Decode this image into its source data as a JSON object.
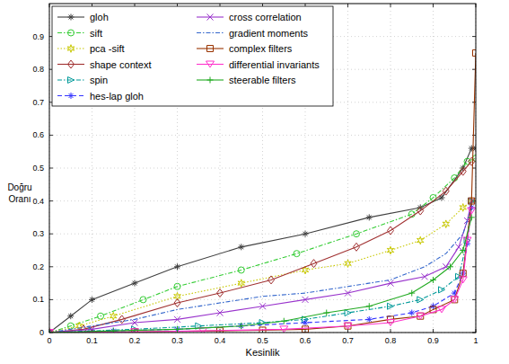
{
  "chart_data": {
    "type": "line",
    "x_label": "Kesinlik",
    "y_label": "Doğru Oranı",
    "xlim": [
      0,
      1
    ],
    "ylim": [
      0,
      1
    ],
    "xticks": [
      0,
      0.1,
      0.2,
      0.3,
      0.4,
      0.5,
      0.6,
      0.7,
      0.8,
      0.9,
      1
    ],
    "yticks": [
      0,
      0.1,
      0.2,
      0.3,
      0.4,
      0.5,
      0.6,
      0.7,
      0.8,
      0.9
    ],
    "grid": true,
    "legend": "upper-left",
    "series": [
      {
        "name": "gloh",
        "color": "#404040",
        "marker": "asterisk",
        "line_style": "solid",
        "x": [
          0,
          0.05,
          0.1,
          0.2,
          0.3,
          0.45,
          0.6,
          0.75,
          0.87,
          0.92,
          0.97,
          0.99,
          1
        ],
        "values": [
          0,
          0.05,
          0.1,
          0.15,
          0.2,
          0.26,
          0.3,
          0.35,
          0.38,
          0.41,
          0.5,
          0.56,
          0.56
        ]
      },
      {
        "name": "sift",
        "color": "#33cc33",
        "marker": "circle",
        "line_style": "dash-dot",
        "x": [
          0,
          0.05,
          0.12,
          0.22,
          0.3,
          0.45,
          0.58,
          0.72,
          0.85,
          0.9,
          0.95,
          0.98,
          1
        ],
        "values": [
          0,
          0.02,
          0.05,
          0.1,
          0.14,
          0.19,
          0.24,
          0.3,
          0.36,
          0.41,
          0.47,
          0.52,
          0.53
        ]
      },
      {
        "name": "pca -sift",
        "color": "#c8c800",
        "marker": "hexagram",
        "line_style": "dotted",
        "x": [
          0,
          0.07,
          0.15,
          0.3,
          0.45,
          0.6,
          0.7,
          0.8,
          0.87,
          0.93,
          0.97,
          0.99
        ],
        "values": [
          0,
          0.02,
          0.05,
          0.11,
          0.15,
          0.19,
          0.21,
          0.25,
          0.28,
          0.33,
          0.38,
          0.4
        ]
      },
      {
        "name": "shape context",
        "color": "#a03030",
        "marker": "diamond",
        "line_style": "solid",
        "x": [
          0,
          0.08,
          0.17,
          0.3,
          0.4,
          0.52,
          0.62,
          0.72,
          0.8,
          0.87,
          0.93,
          0.97,
          0.99
        ],
        "values": [
          0,
          0.01,
          0.04,
          0.09,
          0.12,
          0.16,
          0.21,
          0.26,
          0.31,
          0.37,
          0.43,
          0.49,
          0.52
        ]
      },
      {
        "name": "spin",
        "color": "#009999",
        "marker": "triangle-right",
        "line_style": "dash-dot",
        "x": [
          0,
          0.1,
          0.2,
          0.35,
          0.5,
          0.6,
          0.7,
          0.8,
          0.87,
          0.92,
          0.96,
          0.98,
          0.99
        ],
        "values": [
          0,
          0.005,
          0.01,
          0.02,
          0.03,
          0.04,
          0.06,
          0.08,
          0.1,
          0.13,
          0.17,
          0.28,
          0.4
        ]
      },
      {
        "name": "hes-lap gloh",
        "color": "#3333ff",
        "marker": "asterisk",
        "line_style": "dashed",
        "x": [
          0,
          0.15,
          0.3,
          0.45,
          0.6,
          0.75,
          0.85,
          0.9,
          0.95,
          0.97,
          0.98,
          0.99
        ],
        "values": [
          0,
          0.005,
          0.01,
          0.02,
          0.03,
          0.04,
          0.06,
          0.08,
          0.12,
          0.18,
          0.27,
          0.38
        ]
      },
      {
        "name": "cross correlation",
        "color": "#9933cc",
        "marker": "x",
        "line_style": "solid",
        "x": [
          0,
          0.1,
          0.2,
          0.3,
          0.4,
          0.5,
          0.6,
          0.7,
          0.8,
          0.88,
          0.93,
          0.96,
          0.98,
          0.99
        ],
        "values": [
          0,
          0.01,
          0.03,
          0.04,
          0.06,
          0.08,
          0.1,
          0.12,
          0.15,
          0.17,
          0.2,
          0.26,
          0.34,
          0.4
        ]
      },
      {
        "name": "gradient moments",
        "color": "#3366cc",
        "marker": "none",
        "line_style": "dash-dot",
        "x": [
          0,
          0.1,
          0.2,
          0.3,
          0.4,
          0.5,
          0.6,
          0.7,
          0.8,
          0.88,
          0.93,
          0.97,
          0.99
        ],
        "values": [
          0,
          0.02,
          0.04,
          0.07,
          0.09,
          0.11,
          0.12,
          0.14,
          0.16,
          0.2,
          0.24,
          0.3,
          0.38
        ]
      },
      {
        "name": "complex filters",
        "color": "#993300",
        "marker": "square",
        "line_style": "solid",
        "x": [
          0,
          0.2,
          0.4,
          0.5,
          0.6,
          0.7,
          0.8,
          0.87,
          0.9,
          0.95,
          0.97,
          0.99,
          1
        ],
        "values": [
          0,
          0.002,
          0.005,
          0.007,
          0.01,
          0.02,
          0.04,
          0.05,
          0.07,
          0.1,
          0.18,
          0.4,
          0.85
        ]
      },
      {
        "name": "differential invariants",
        "color": "#ff33cc",
        "marker": "triangle-down",
        "line_style": "solid",
        "x": [
          0,
          0.2,
          0.36,
          0.55,
          0.7,
          0.8,
          0.87,
          0.92,
          0.95,
          0.97,
          0.98,
          0.99
        ],
        "values": [
          0,
          0.002,
          0.005,
          0.01,
          0.02,
          0.03,
          0.05,
          0.07,
          0.1,
          0.16,
          0.28,
          0.37
        ]
      },
      {
        "name": "steerable filters",
        "color": "#22aa22",
        "marker": "plus",
        "line_style": "solid",
        "x": [
          0,
          0.15,
          0.3,
          0.45,
          0.55,
          0.65,
          0.75,
          0.85,
          0.9,
          0.94,
          0.97,
          0.99
        ],
        "values": [
          0,
          0.005,
          0.01,
          0.02,
          0.035,
          0.06,
          0.08,
          0.12,
          0.16,
          0.2,
          0.25,
          0.35
        ]
      }
    ]
  }
}
